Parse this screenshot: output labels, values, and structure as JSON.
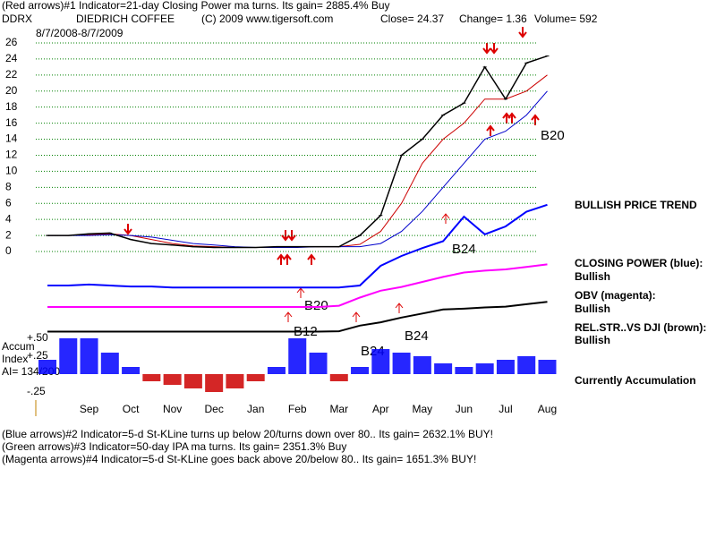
{
  "header": {
    "line1": "(Red arrows)#1 Indicator=21-day Closing Power ma turns. Its gain= 2885.4% Buy",
    "symbol": "DDRX",
    "company": "DIEDRICH COFFEE",
    "copyright": "(C) 2009 www.tigersoft.com",
    "close": "Close=  24.37",
    "change": "Change= 1.36",
    "volume": "Volume= 592",
    "date_range": "8/7/2008-8/7/2009"
  },
  "chart_data": {
    "type": "line",
    "categories": [
      null,
      null,
      "Sep",
      null,
      "Oct",
      null,
      "Nov",
      null,
      "Dec",
      null,
      "Jan",
      null,
      "Feb",
      null,
      "Mar",
      null,
      "Apr",
      null,
      "May",
      null,
      "Jun",
      null,
      "Jul",
      null,
      "Aug"
    ],
    "series": [
      {
        "color": "#cc0000",
        "values": [
          2,
          2,
          2.1,
          2.2,
          2,
          1.5,
          1,
          0.7,
          0.6,
          0.5,
          0.5,
          0.5,
          0.6,
          0.6,
          0.6,
          0.9,
          2.5,
          6,
          11,
          14,
          16,
          19,
          19,
          20,
          22
        ]
      },
      {
        "color": "#0000cc",
        "values": [
          2,
          2,
          2,
          2.1,
          2,
          1.8,
          1.4,
          1,
          0.8,
          0.6,
          0.5,
          0.5,
          0.5,
          0.6,
          0.6,
          0.6,
          1,
          2.5,
          5,
          8,
          11,
          14,
          15,
          17,
          20
        ]
      },
      {
        "color": "#000000",
        "values": [
          2,
          2,
          2.2,
          2.3,
          1.5,
          1,
          0.8,
          0.6,
          0.5,
          0.5,
          0.5,
          0.6,
          0.6,
          0.6,
          0.6,
          2,
          4.5,
          12,
          14,
          17,
          18.5,
          23,
          19,
          23.5,
          24.37
        ]
      }
    ],
    "ylim": [
      -0.5,
      26.5
    ],
    "yticks": [
      0,
      2,
      4,
      6,
      8,
      10,
      12,
      14,
      16,
      18,
      20,
      22,
      24,
      26
    ],
    "grid": true,
    "grid_color": "#008000",
    "trend": "BULLISH PRICE TREND",
    "annotations": [
      "B20",
      "B24",
      "B20",
      "B12",
      "B24",
      "B24"
    ],
    "indicators": [
      {
        "title": "CLOSING POWER (blue):",
        "status": "Bullish",
        "color": "#0000ff",
        "ylim": [
          0,
          100
        ],
        "values": [
          10,
          10,
          11,
          10,
          9,
          9,
          8,
          8,
          8,
          8,
          8,
          8,
          8,
          8,
          8,
          10,
          30,
          40,
          48,
          55,
          80,
          62,
          70,
          85,
          92
        ]
      },
      {
        "title": "OBV (magenta):",
        "status": "Bullish",
        "color": "#ff00ff",
        "ylim": [
          0,
          100
        ],
        "values": [
          10,
          10,
          10,
          10,
          10,
          10,
          10,
          10,
          10,
          10,
          10,
          10,
          10,
          10,
          12,
          25,
          36,
          42,
          50,
          58,
          65,
          68,
          70,
          74,
          78
        ]
      },
      {
        "title": "REL.STR..VS DJI (brown):",
        "status": "Bullish",
        "color": "#000000",
        "ylim": [
          0,
          100
        ],
        "values": [
          10,
          10,
          10,
          10,
          10,
          10,
          10,
          10,
          10,
          10,
          10,
          10,
          10,
          10,
          11,
          25,
          33,
          45,
          55,
          65,
          67,
          70,
          72,
          78,
          84
        ]
      }
    ],
    "accum": {
      "type": "bar",
      "label1": "Accum",
      "label2": "Index",
      "ai": "AI= 134/200",
      "status": "Currently Accumulation",
      "pos_color": "#0000ff",
      "neg_color": "#cc0000",
      "ylim": [
        -0.45,
        0.6
      ],
      "yticks": [
        {
          "value": 0.5,
          "label": "+.50"
        },
        {
          "value": 0.25,
          "label": "+.25"
        },
        {
          "value": -0.25,
          "label": "-.25"
        }
      ],
      "values": [
        0.2,
        0.5,
        0.5,
        0.3,
        0.1,
        -0.1,
        -0.15,
        -0.2,
        -0.25,
        -0.2,
        -0.1,
        0.1,
        0.5,
        0.3,
        -0.1,
        0.1,
        0.35,
        0.3,
        0.25,
        0.15,
        0.1,
        0.15,
        0.2,
        0.25,
        0.2
      ]
    }
  },
  "footer": [
    "(Blue arrows)#2 Indicator=5-d St-KLine turns up below 20/turns down over 80.. Its gain= 2632.1% BUY!",
    "(Green arrows)#3 Indicator=50-day IPA ma turns. Its gain= 2351.3% Buy",
    "(Magenta arrows)#4 Indicator=5-d St-KLine goes back above 20/below 80.. Its gain= 1651.3% BUY!"
  ]
}
